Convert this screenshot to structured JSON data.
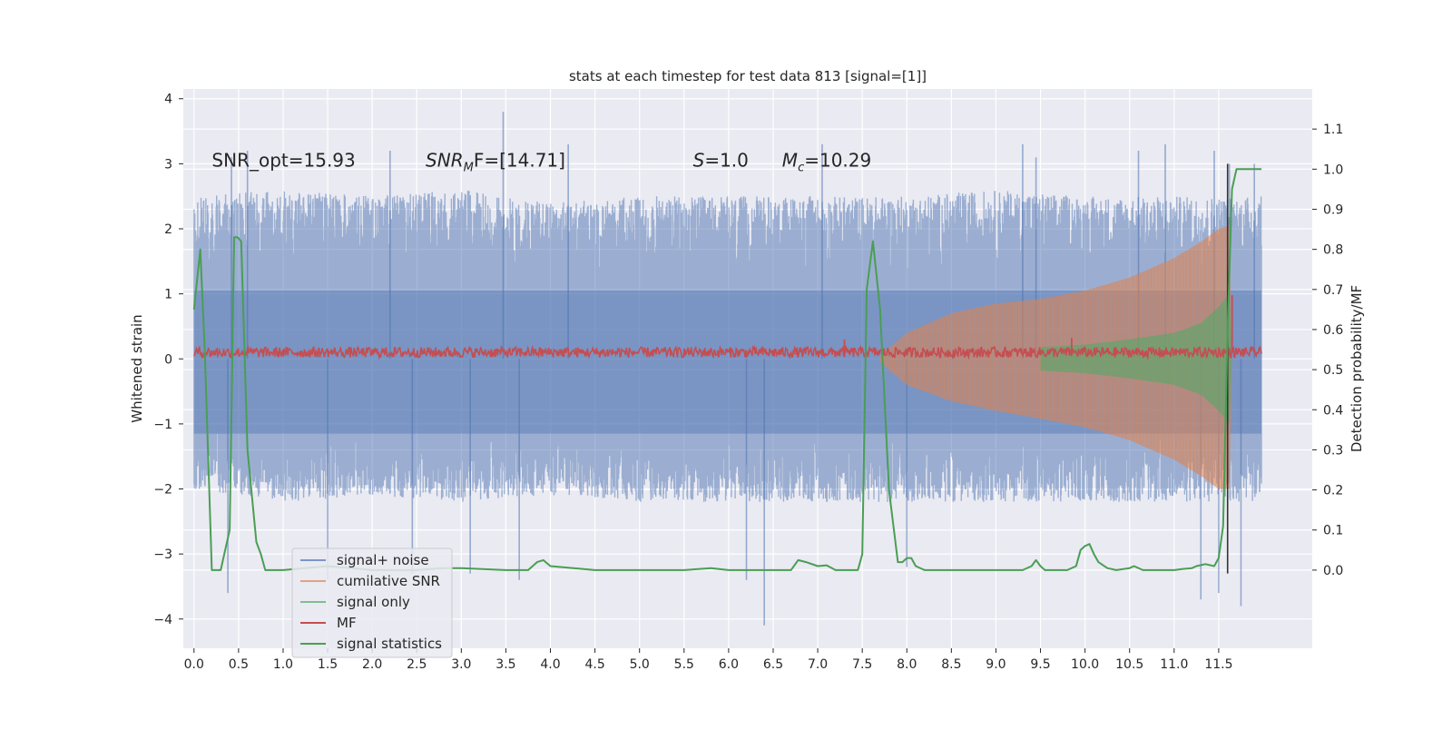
{
  "colors": {
    "plot_background": "#eaeaf2",
    "grid": "#ffffff",
    "signal_noise": "#4c72b0",
    "cumulative_snr": "#dd8452",
    "signal_only": "#55a868",
    "mf": "#c44e52",
    "signal_statistics": "#4a9e54",
    "marker_line": "#333333"
  },
  "chart_data": {
    "type": "line",
    "title": "stats at each timestep for test data 813 [signal=[1]]",
    "xlabel": "",
    "ylabel": "Whitened strain",
    "y2label": "Detection probability/MF",
    "xlim": [
      -0.12,
      12.55
    ],
    "ylim": [
      -4.45,
      4.15
    ],
    "y2lim": [
      -0.195,
      1.2
    ],
    "x_ticks": [
      "0.0",
      "0.5",
      "1.0",
      "1.5",
      "2.0",
      "2.5",
      "3.0",
      "3.5",
      "4.0",
      "4.5",
      "5.0",
      "5.5",
      "6.0",
      "6.5",
      "7.0",
      "7.5",
      "8.0",
      "8.5",
      "9.0",
      "9.5",
      "10.0",
      "10.5",
      "11.0",
      "11.5"
    ],
    "y_ticks": [
      "4",
      "3",
      "2",
      "1",
      "0",
      "−1",
      "−2",
      "−3",
      "−4"
    ],
    "y2_ticks": [
      "1.1",
      "1.0",
      "0.9",
      "0.8",
      "0.7",
      "0.6",
      "0.5",
      "0.4",
      "0.3",
      "0.2",
      "0.1",
      "0.0"
    ],
    "grid": true,
    "legend_position": "lower-left",
    "annotations": [
      {
        "text": "SNR_opt=15.93",
        "x": 0.2,
        "y": 3.0
      },
      {
        "prefix": "SNR",
        "sub": "M",
        "suffix": "F=[14.71]",
        "x": 2.6,
        "y": 3.0
      },
      {
        "prefix": "S",
        "sub": "",
        "suffix": "=1.0",
        "x": 5.6,
        "y": 3.0
      },
      {
        "prefix": "M",
        "sub": "c",
        "suffix": "=10.29",
        "x": 6.6,
        "y": 3.0
      }
    ],
    "legend": [
      "signal+ noise",
      "cumilative SNR",
      "signal only",
      "MF",
      "signal statistics"
    ],
    "noise_envelope": {
      "x": [
        0,
        1,
        2,
        3,
        4,
        5,
        6,
        7,
        8,
        9,
        10,
        11,
        11.6,
        11.98
      ],
      "upper": [
        2.5,
        2.6,
        2.5,
        2.6,
        2.4,
        2.5,
        2.5,
        2.5,
        2.5,
        2.6,
        2.5,
        2.5,
        2.5,
        2.5
      ],
      "lower": [
        -2.0,
        -2.2,
        -2.1,
        -2.2,
        -2.1,
        -2.2,
        -2.2,
        -2.2,
        -2.2,
        -2.2,
        -2.2,
        -2.2,
        -2.2,
        -2.2
      ]
    },
    "noise_spikes": [
      {
        "x": 0.42,
        "y": 3.1
      },
      {
        "x": 0.38,
        "y": -3.6
      },
      {
        "x": 0.6,
        "y": 3.2
      },
      {
        "x": 1.5,
        "y": -3.4
      },
      {
        "x": 2.2,
        "y": 3.2
      },
      {
        "x": 2.45,
        "y": -3.3
      },
      {
        "x": 3.1,
        "y": -3.3
      },
      {
        "x": 3.47,
        "y": 3.8
      },
      {
        "x": 3.65,
        "y": -3.4
      },
      {
        "x": 4.2,
        "y": 3.3
      },
      {
        "x": 6.2,
        "y": -3.4
      },
      {
        "x": 6.4,
        "y": -4.1
      },
      {
        "x": 7.05,
        "y": 3.3
      },
      {
        "x": 8.0,
        "y": -3.2
      },
      {
        "x": 9.3,
        "y": 3.3
      },
      {
        "x": 9.45,
        "y": 3.1
      },
      {
        "x": 10.6,
        "y": 3.2
      },
      {
        "x": 10.9,
        "y": 3.3
      },
      {
        "x": 11.3,
        "y": -3.7
      },
      {
        "x": 11.45,
        "y": 3.2
      },
      {
        "x": 11.5,
        "y": -3.6
      },
      {
        "x": 11.62,
        "y": 3.0
      },
      {
        "x": 11.75,
        "y": -3.8
      },
      {
        "x": 11.9,
        "y": 3.0
      }
    ],
    "signal_envelope": {
      "x": [
        7.7,
        8.0,
        8.5,
        9.0,
        9.5,
        10.0,
        10.5,
        11.0,
        11.3,
        11.5,
        11.62,
        11.65
      ],
      "upper": [
        0.05,
        0.4,
        0.7,
        0.85,
        0.92,
        1.05,
        1.25,
        1.55,
        1.8,
        2.0,
        2.05,
        0.0
      ],
      "lower": [
        -0.05,
        -0.4,
        -0.65,
        -0.8,
        -0.92,
        -1.05,
        -1.25,
        -1.55,
        -1.8,
        -2.0,
        -2.0,
        0.0
      ]
    },
    "signal_only_envelope": {
      "x": [
        9.5,
        10.0,
        10.5,
        11.0,
        11.3,
        11.5,
        11.62,
        11.65
      ],
      "upper": [
        0.18,
        0.22,
        0.3,
        0.4,
        0.55,
        0.8,
        1.0,
        0.0
      ],
      "lower": [
        -0.18,
        -0.22,
        -0.3,
        -0.4,
        -0.55,
        -0.8,
        -1.0,
        0.0
      ]
    },
    "mf_level": 0.1,
    "mf_spikes": [
      {
        "x": 7.3,
        "y": 0.3
      },
      {
        "x": 9.85,
        "y": 0.32
      },
      {
        "x": 11.65,
        "y": 0.98
      }
    ],
    "signal_statistics": {
      "x": [
        0.0,
        0.07,
        0.12,
        0.2,
        0.25,
        0.3,
        0.4,
        0.45,
        0.49,
        0.53,
        0.6,
        0.7,
        0.75,
        0.8,
        1.0,
        1.5,
        2.0,
        2.5,
        2.8,
        3.0,
        3.5,
        3.75,
        3.85,
        3.92,
        4.0,
        4.5,
        5.0,
        5.5,
        5.8,
        6.0,
        6.5,
        6.7,
        6.78,
        6.87,
        7.0,
        7.1,
        7.2,
        7.45,
        7.5,
        7.55,
        7.62,
        7.7,
        7.8,
        7.9,
        7.95,
        8.0,
        8.05,
        8.1,
        8.2,
        8.5,
        9.0,
        9.3,
        9.4,
        9.45,
        9.5,
        9.55,
        9.65,
        9.8,
        9.9,
        9.95,
        10.0,
        10.05,
        10.1,
        10.15,
        10.25,
        10.35,
        10.5,
        10.55,
        10.65,
        10.8,
        11.0,
        11.1,
        11.2,
        11.25,
        11.35,
        11.45,
        11.5,
        11.55,
        11.6,
        11.65,
        11.7,
        11.8,
        11.9,
        11.98
      ],
      "values": [
        0.65,
        0.8,
        0.55,
        0.0,
        0.0,
        0.0,
        0.1,
        0.83,
        0.83,
        0.82,
        0.3,
        0.07,
        0.04,
        0.0,
        0.0,
        0.01,
        0.0,
        0.0,
        0.005,
        0.005,
        0.0,
        0.0,
        0.02,
        0.025,
        0.01,
        0.0,
        0.0,
        0.0,
        0.005,
        0.0,
        0.0,
        0.0,
        0.025,
        0.02,
        0.01,
        0.012,
        0.0,
        0.0,
        0.04,
        0.7,
        0.82,
        0.65,
        0.2,
        0.02,
        0.02,
        0.03,
        0.03,
        0.01,
        0.0,
        0.0,
        0.0,
        0.0,
        0.01,
        0.025,
        0.01,
        0.0,
        0.0,
        0.0,
        0.01,
        0.05,
        0.06,
        0.065,
        0.04,
        0.02,
        0.005,
        0.0,
        0.005,
        0.01,
        0.0,
        0.0,
        0.0,
        0.003,
        0.005,
        0.01,
        0.015,
        0.01,
        0.03,
        0.11,
        0.6,
        0.95,
        1.0,
        1.0,
        1.0,
        1.0
      ]
    },
    "marker_line_x": 11.6
  }
}
